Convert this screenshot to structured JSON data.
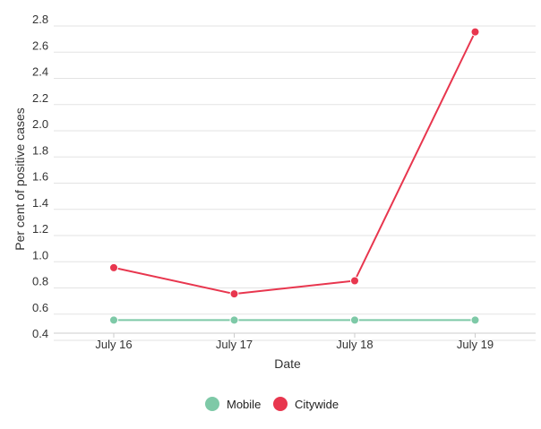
{
  "chart_data": {
    "type": "line",
    "title": "",
    "xlabel": "Date",
    "ylabel": "Per cent of positive cases",
    "categories": [
      "July 16",
      "July 17",
      "July 18",
      "July 19"
    ],
    "ylim": [
      0.4,
      2.8
    ],
    "yticks": [
      "0.4",
      "0.6",
      "0.8",
      "1.0",
      "1.2",
      "1.4",
      "1.6",
      "1.8",
      "2.0",
      "2.2",
      "2.4",
      "2.6",
      "2.8"
    ],
    "grid": true,
    "legend_position": "bottom-center",
    "series": [
      {
        "name": "Mobile",
        "color": "#7ec9a7",
        "values": [
          0.5,
          0.5,
          0.5,
          0.5
        ]
      },
      {
        "name": "Citywide",
        "color": "#e8364e",
        "values": [
          0.9,
          0.7,
          0.8,
          2.7
        ]
      }
    ]
  }
}
